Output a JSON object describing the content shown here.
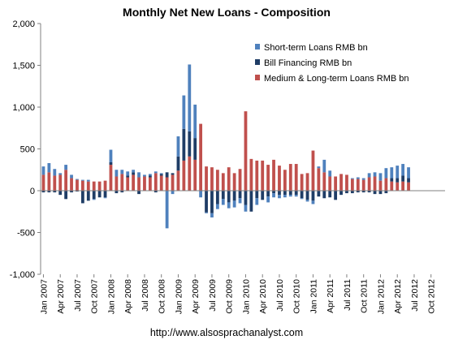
{
  "chart_data": {
    "type": "bar",
    "stacked": true,
    "title": "Monthly Net New Loans - Composition",
    "xlabel": "",
    "ylabel": "",
    "ylim": [
      -1000,
      2000
    ],
    "yticks": [
      -1000,
      -500,
      0,
      500,
      1000,
      1500,
      2000
    ],
    "ytick_labels": [
      "-1,000",
      "-500",
      "0",
      "500",
      "1,000",
      "1,500",
      "2,000"
    ],
    "x_start": "2007-01",
    "x_end": "2012-12",
    "xtick_labels": [
      "Jan 2007",
      "Apr 2007",
      "Jul 2007",
      "Oct 2007",
      "Jan 2008",
      "Apr 2008",
      "Jul 2008",
      "Oct 2008",
      "Jan 2009",
      "Apr 2009",
      "Jul 2009",
      "Oct 2009",
      "Jan 2010",
      "Apr 2010",
      "Jul 2010",
      "Oct 2010",
      "Jan 2011",
      "Apr 2011",
      "Jul 2011",
      "Oct 2011",
      "Jan 2012",
      "Apr 2012",
      "Jul 2012",
      "Oct 2012"
    ],
    "grid": false,
    "legend_position": "top-right",
    "series": [
      {
        "name": "Short-term Loans RMB bn",
        "color": "#4f81bd",
        "values": [
          100,
          110,
          80,
          20,
          60,
          40,
          10,
          10,
          20,
          -10,
          0,
          -10,
          150,
          80,
          50,
          50,
          30,
          60,
          20,
          20,
          20,
          10,
          -450,
          -40,
          240,
          400,
          800,
          400,
          -80,
          -10,
          -50,
          -60,
          -70,
          -70,
          -80,
          -60,
          -80,
          0,
          -80,
          0,
          -70,
          -50,
          -40,
          -30,
          -20,
          -20,
          -10,
          -20,
          -40,
          20,
          150,
          70,
          0,
          0,
          0,
          10,
          20,
          20,
          50,
          50,
          90,
          120,
          130,
          150,
          140,
          130,
          null,
          null,
          null,
          null,
          null,
          null
        ]
      },
      {
        "name": "Bill Financing RMB bn",
        "color": "#1f3d66",
        "values": [
          -20,
          -20,
          -20,
          -50,
          -100,
          -20,
          -10,
          -150,
          -120,
          -100,
          -80,
          -80,
          30,
          -30,
          -20,
          20,
          30,
          -40,
          0,
          20,
          -20,
          20,
          60,
          20,
          170,
          380,
          300,
          260,
          0,
          -260,
          -270,
          -160,
          -100,
          -140,
          -120,
          -90,
          -170,
          -250,
          -90,
          -110,
          -70,
          -30,
          -50,
          -50,
          -50,
          -50,
          -90,
          -110,
          -120,
          -70,
          -90,
          -80,
          -110,
          -50,
          -30,
          -30,
          -20,
          -20,
          -20,
          -40,
          -40,
          -30,
          40,
          50,
          70,
          50,
          null,
          null,
          null,
          null,
          null,
          null
        ]
      },
      {
        "name": "Medium & Long-term Loans RMB bn",
        "color": "#c0504d",
        "values": [
          190,
          220,
          180,
          190,
          250,
          150,
          130,
          120,
          110,
          110,
          110,
          120,
          310,
          170,
          200,
          160,
          190,
          160,
          170,
          160,
          210,
          180,
          160,
          190,
          240,
          360,
          410,
          370,
          800,
          290,
          280,
          250,
          210,
          280,
          210,
          260,
          950,
          380,
          360,
          360,
          310,
          370,
          300,
          250,
          320,
          320,
          200,
          210,
          480,
          270,
          220,
          170,
          170,
          200,
          190,
          140,
          140,
          130,
          160,
          170,
          120,
          150,
          110,
          100,
          110,
          100,
          null,
          null,
          null,
          null,
          null,
          null
        ]
      }
    ]
  },
  "footer": {
    "url": "http://www.alsosprachanalyst.com"
  }
}
